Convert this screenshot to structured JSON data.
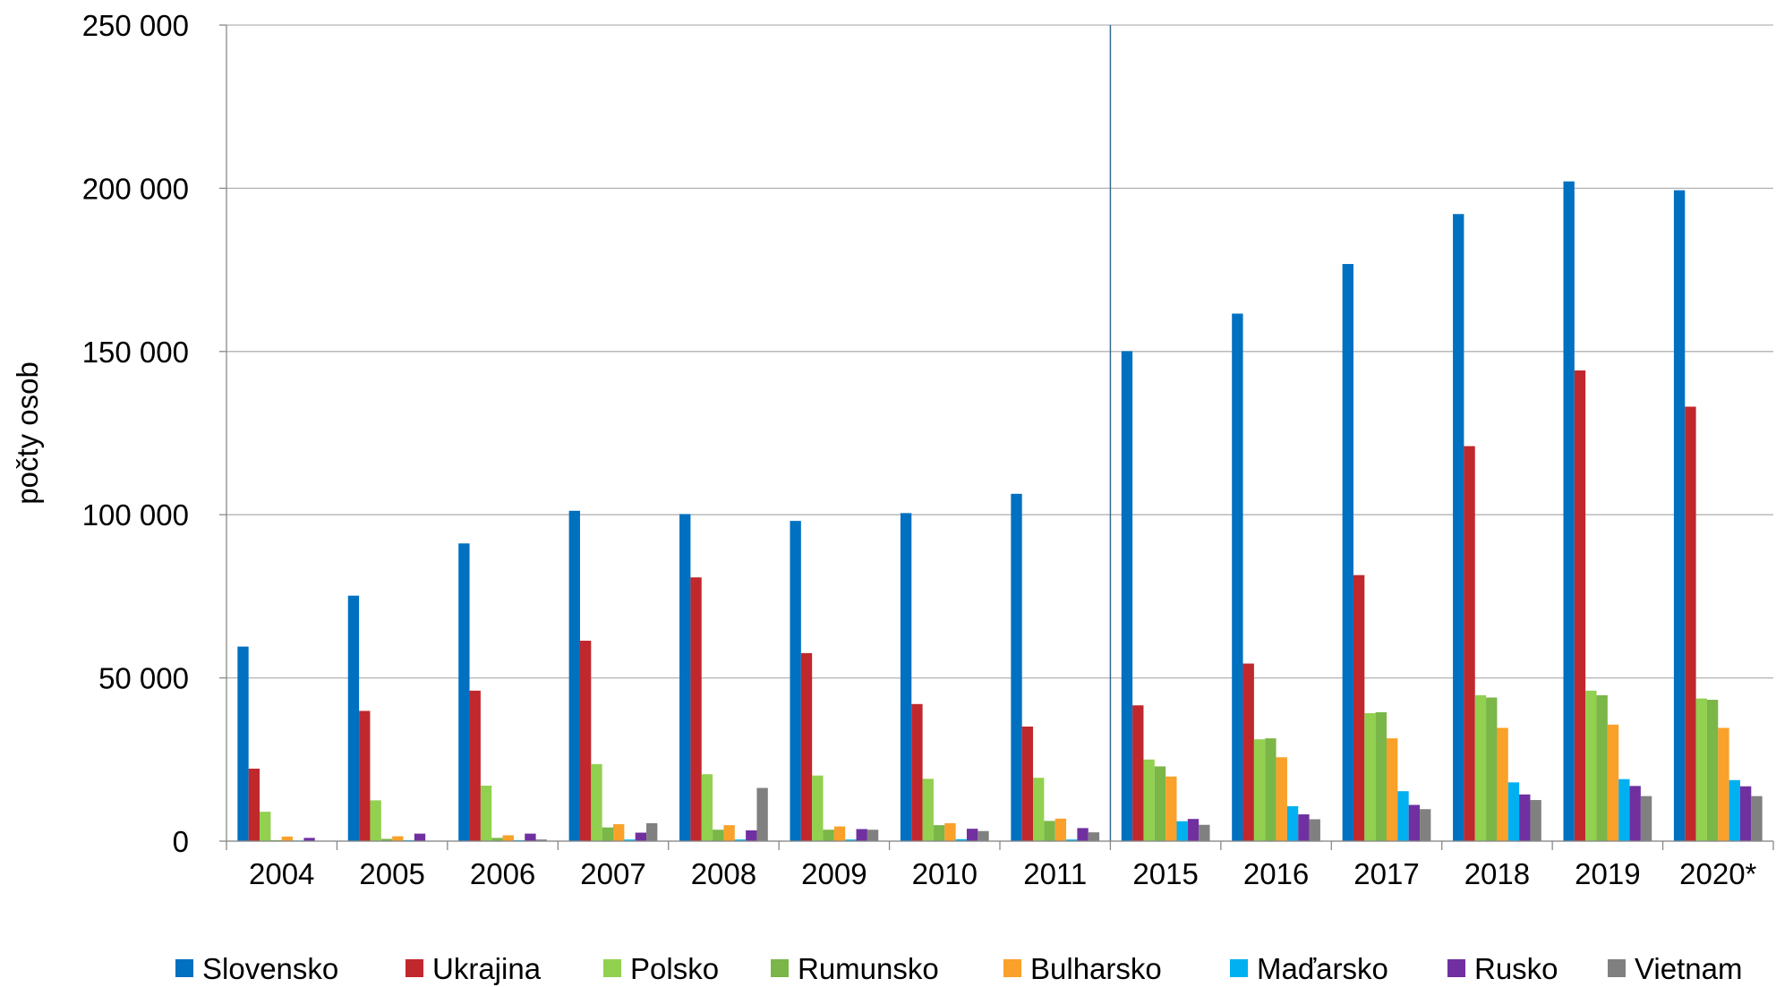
{
  "chart_data": {
    "type": "bar",
    "y_label": "počty osob",
    "categories": [
      "2004",
      "2005",
      "2006",
      "2007",
      "2008",
      "2009",
      "2010",
      "2011",
      "2015",
      "2016",
      "2017",
      "2018",
      "2019",
      "2020*"
    ],
    "ylim": [
      0,
      250000
    ],
    "yticks": [
      0,
      {
        "value": 50000,
        "label": "50 000"
      },
      {
        "value": 100000,
        "label": "100 000"
      },
      {
        "value": 150000,
        "label": "150 000"
      },
      {
        "value": 200000,
        "label": "200 000"
      },
      {
        "value": 250000,
        "label": "250 000"
      }
    ],
    "grid": true,
    "legend": "bottom",
    "series": [
      {
        "name": "Slovensko",
        "color": "#0070c0",
        "values": [
          59600,
          75200,
          91200,
          101200,
          100200,
          98100,
          100500,
          106400,
          150100,
          161600,
          176800,
          192100,
          202100,
          199400
        ]
      },
      {
        "name": "Ukrajina",
        "color": "#c0282d",
        "values": [
          22200,
          39900,
          46100,
          61400,
          80800,
          57600,
          42000,
          35100,
          41600,
          54400,
          81500,
          121000,
          144200,
          133100
        ]
      },
      {
        "name": "Polsko",
        "color": "#92d050",
        "values": [
          9000,
          12500,
          17000,
          23600,
          20500,
          20100,
          19100,
          19400,
          25000,
          31200,
          39200,
          44700,
          46100,
          43700
        ]
      },
      {
        "name": "Rumunsko",
        "color": "#7ab648",
        "values": [
          300,
          700,
          1000,
          4200,
          3500,
          3500,
          4900,
          6200,
          22900,
          31500,
          39500,
          44000,
          44700,
          43300
        ]
      },
      {
        "name": "Bulharsko",
        "color": "#f9a12a",
        "values": [
          1400,
          1500,
          1800,
          5200,
          4900,
          4500,
          5500,
          6900,
          19800,
          25700,
          31500,
          34700,
          35700,
          34700
        ]
      },
      {
        "name": "Maďarsko",
        "color": "#00b0f0",
        "values": [
          200,
          300,
          300,
          500,
          500,
          500,
          600,
          500,
          6100,
          10700,
          15300,
          18000,
          19000,
          18700
        ]
      },
      {
        "name": "Rusko",
        "color": "#7030a0",
        "values": [
          1000,
          2300,
          2300,
          2600,
          3300,
          3700,
          3800,
          4000,
          6800,
          8200,
          11100,
          14300,
          16900,
          16800
        ]
      },
      {
        "name": "Vietnam",
        "color": "#808080",
        "values": [
          100,
          100,
          500,
          5500,
          16300,
          3500,
          3100,
          2700,
          5000,
          6700,
          9800,
          12600,
          13800,
          13800
        ]
      }
    ]
  }
}
